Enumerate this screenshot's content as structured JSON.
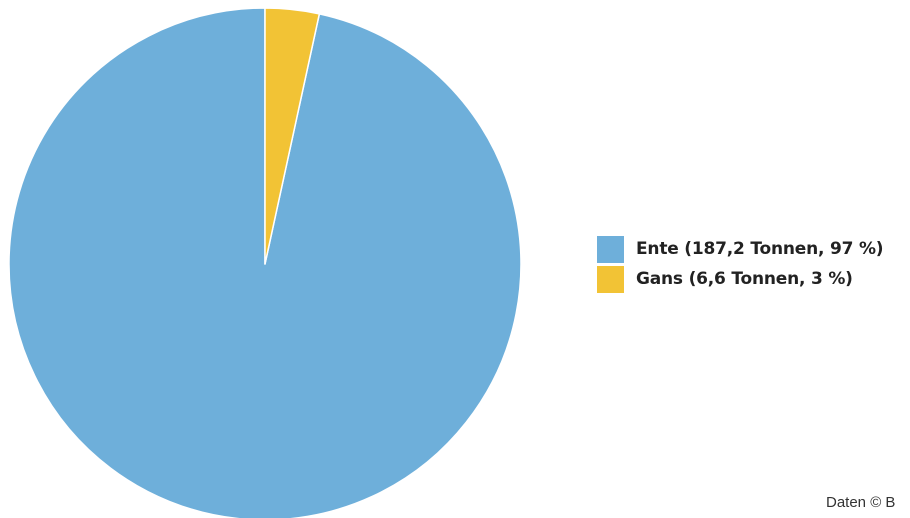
{
  "chart_data": {
    "type": "pie",
    "title": "",
    "slices": [
      {
        "label": "Ente (187,2 Tonnen, 97 %)",
        "value": 187.2,
        "percent": 97,
        "color": "#6eafda"
      },
      {
        "label": "Gans (6,6 Tonnen, 3 %)",
        "value": 6.6,
        "percent": 3,
        "color": "#f2c335"
      }
    ],
    "legend_placement": "right"
  },
  "source": "Daten © B"
}
